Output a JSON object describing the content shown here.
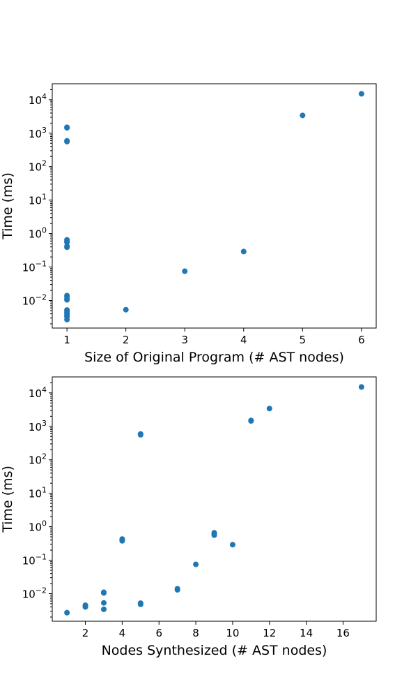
{
  "chart_data": [
    {
      "type": "scatter",
      "xlabel": "Size of Original Program (# AST nodes)",
      "ylabel": "Time (ms)",
      "yscale": "log",
      "xlim": [
        0.75,
        6.25
      ],
      "ylim": [
        0.0015,
        30000
      ],
      "xticks": [
        1,
        2,
        3,
        4,
        5,
        6
      ],
      "yticks": [
        0.01,
        0.1,
        1,
        10,
        100,
        1000,
        10000
      ],
      "yticklabels": [
        {
          "base": "10",
          "exp": "−2"
        },
        {
          "base": "10",
          "exp": "−1"
        },
        {
          "base": "10",
          "exp": "0"
        },
        {
          "base": "10",
          "exp": "1"
        },
        {
          "base": "10",
          "exp": "2"
        },
        {
          "base": "10",
          "exp": "3"
        },
        {
          "base": "10",
          "exp": "4"
        }
      ],
      "grid": false,
      "marker_color": "#1f77b4",
      "points": [
        {
          "x": 1,
          "y": 1500
        },
        {
          "x": 1,
          "y": 1450
        },
        {
          "x": 1,
          "y": 590
        },
        {
          "x": 1,
          "y": 560
        },
        {
          "x": 1,
          "y": 0.65
        },
        {
          "x": 1,
          "y": 0.6
        },
        {
          "x": 1,
          "y": 0.55
        },
        {
          "x": 1,
          "y": 0.42
        },
        {
          "x": 1,
          "y": 0.39
        },
        {
          "x": 1,
          "y": 0.014
        },
        {
          "x": 1,
          "y": 0.013
        },
        {
          "x": 1,
          "y": 0.011
        },
        {
          "x": 1,
          "y": 0.0105
        },
        {
          "x": 1,
          "y": 0.0052
        },
        {
          "x": 1,
          "y": 0.0048
        },
        {
          "x": 1,
          "y": 0.0043
        },
        {
          "x": 1,
          "y": 0.004
        },
        {
          "x": 1,
          "y": 0.0035
        },
        {
          "x": 1,
          "y": 0.0033
        },
        {
          "x": 1,
          "y": 0.0027
        },
        {
          "x": 2,
          "y": 0.0053
        },
        {
          "x": 3,
          "y": 0.075
        },
        {
          "x": 4,
          "y": 0.29
        },
        {
          "x": 5,
          "y": 3400
        },
        {
          "x": 6,
          "y": 15000
        }
      ]
    },
    {
      "type": "scatter",
      "xlabel": "Nodes Synthesized (# AST nodes)",
      "ylabel": "Time (ms)",
      "yscale": "log",
      "xlim": [
        0.2,
        17.8
      ],
      "ylim": [
        0.0015,
        30000
      ],
      "xticks": [
        2,
        4,
        6,
        8,
        10,
        12,
        14,
        16
      ],
      "yticks": [
        0.01,
        0.1,
        1,
        10,
        100,
        1000,
        10000
      ],
      "yticklabels": [
        {
          "base": "10",
          "exp": "−2"
        },
        {
          "base": "10",
          "exp": "−1"
        },
        {
          "base": "10",
          "exp": "0"
        },
        {
          "base": "10",
          "exp": "1"
        },
        {
          "base": "10",
          "exp": "2"
        },
        {
          "base": "10",
          "exp": "3"
        },
        {
          "base": "10",
          "exp": "4"
        }
      ],
      "grid": false,
      "marker_color": "#1f77b4",
      "points": [
        {
          "x": 1,
          "y": 0.0027
        },
        {
          "x": 2,
          "y": 0.0045
        },
        {
          "x": 2,
          "y": 0.0042
        },
        {
          "x": 2,
          "y": 0.004
        },
        {
          "x": 3,
          "y": 0.011
        },
        {
          "x": 3,
          "y": 0.0105
        },
        {
          "x": 3,
          "y": 0.0053
        },
        {
          "x": 3,
          "y": 0.0034
        },
        {
          "x": 4,
          "y": 0.43
        },
        {
          "x": 4,
          "y": 0.4
        },
        {
          "x": 4,
          "y": 0.38
        },
        {
          "x": 5,
          "y": 590
        },
        {
          "x": 5,
          "y": 560
        },
        {
          "x": 5,
          "y": 0.0052
        },
        {
          "x": 5,
          "y": 0.0048
        },
        {
          "x": 7,
          "y": 0.014
        },
        {
          "x": 7,
          "y": 0.013
        },
        {
          "x": 8,
          "y": 0.075
        },
        {
          "x": 9,
          "y": 0.66
        },
        {
          "x": 9,
          "y": 0.6
        },
        {
          "x": 9,
          "y": 0.56
        },
        {
          "x": 10,
          "y": 0.29
        },
        {
          "x": 11,
          "y": 1500
        },
        {
          "x": 11,
          "y": 1450
        },
        {
          "x": 12,
          "y": 3400
        },
        {
          "x": 17,
          "y": 15000
        }
      ]
    }
  ]
}
